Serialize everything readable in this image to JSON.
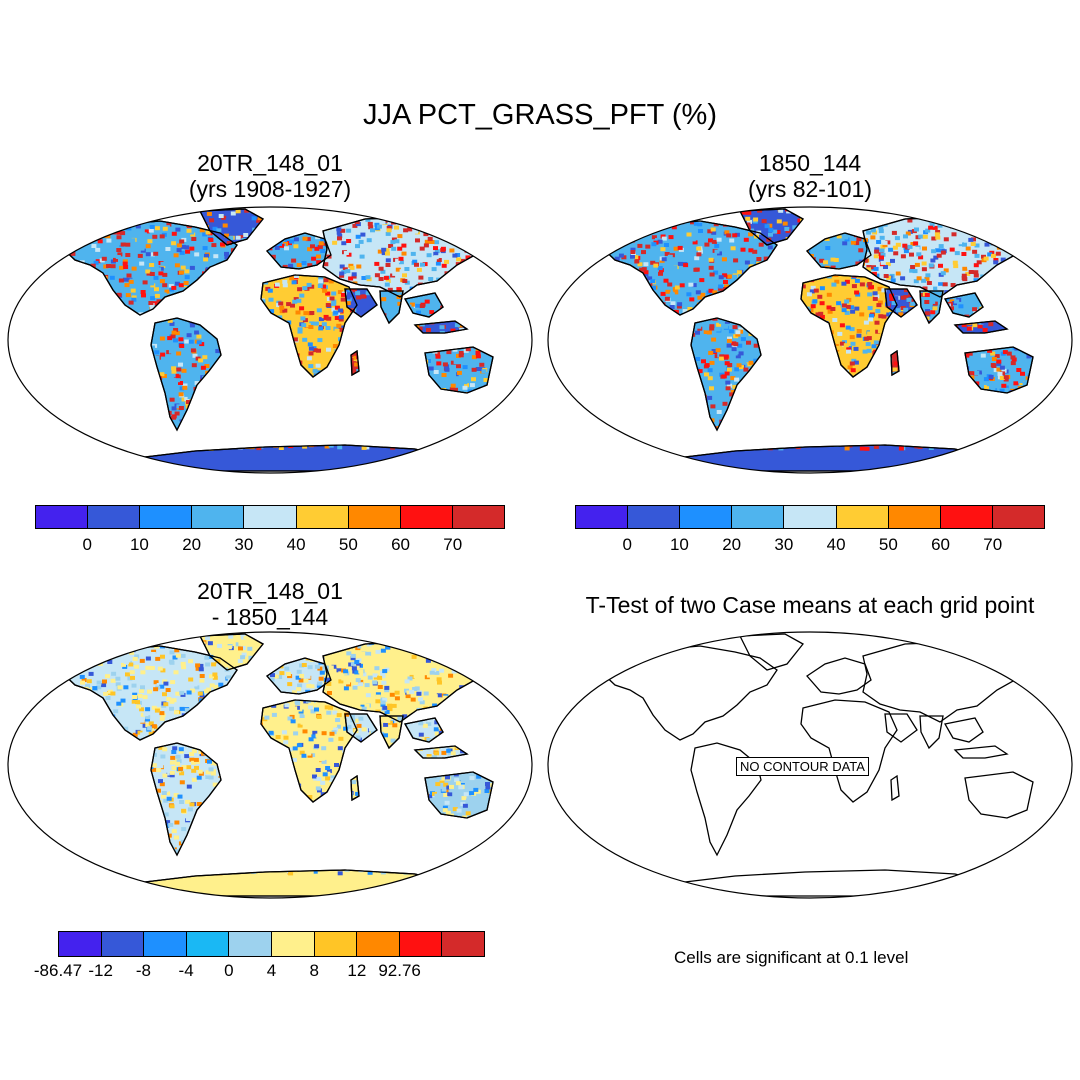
{
  "title": "JJA PCT_GRASS_PFT (%)",
  "panels": [
    {
      "title_line1": "20TR_148_01",
      "title_line2": "(yrs 1908-1927)"
    },
    {
      "title_line1": "1850_144",
      "title_line2": "(yrs 82-101)"
    },
    {
      "title_line1": "20TR_148_01",
      "title_line2": "- 1850_144"
    },
    {
      "title_line1": "T-Test of two Case means at each grid point",
      "title_line2": ""
    }
  ],
  "colorbar_top": {
    "colors": [
      "#4422ee",
      "#3658d8",
      "#1e90ff",
      "#4fb4ee",
      "#c6e6f6",
      "#ffcc33",
      "#ff8800",
      "#ff1111",
      "#d42a2a"
    ],
    "labels": [
      "0",
      "10",
      "20",
      "30",
      "40",
      "50",
      "60",
      "70"
    ]
  },
  "colorbar_diff": {
    "colors": [
      "#4422ee",
      "#3658d8",
      "#1e90ff",
      "#1ab8f4",
      "#9dd2ee",
      "#fff08c",
      "#ffc526",
      "#ff8800",
      "#ff1111",
      "#d42a2a"
    ],
    "labels": [
      "-86.47",
      "-12",
      "-8",
      "-4",
      "0",
      "4",
      "8",
      "12",
      "92.76"
    ]
  },
  "no_contour_label": "NO CONTOUR DATA",
  "significance_note": "Cells are significant at 0.1 level"
}
